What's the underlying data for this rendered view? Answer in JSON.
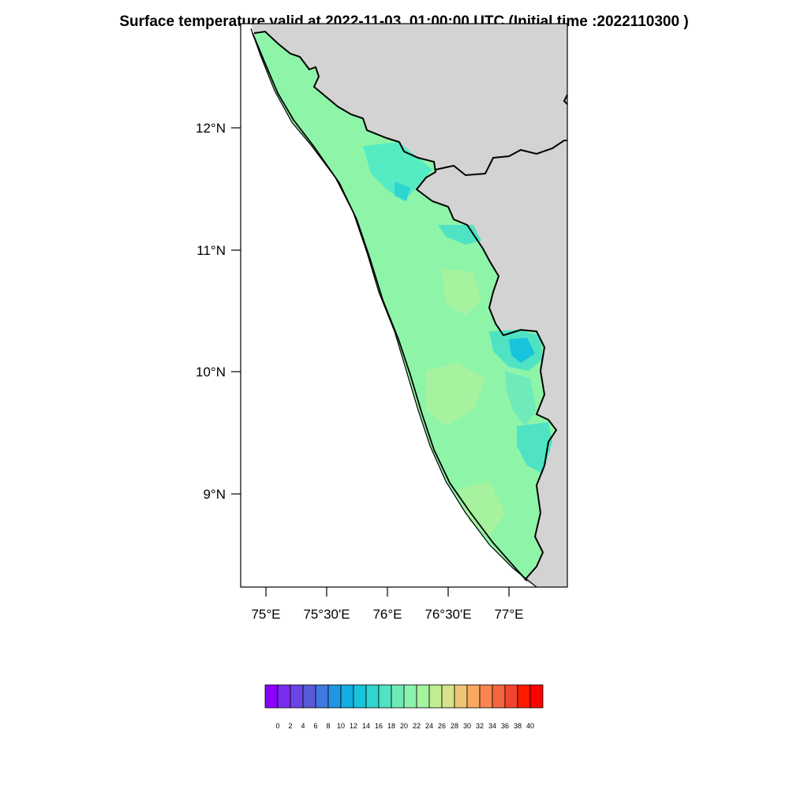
{
  "title": "Surface temperature valid at 2022-11-03_01:00:00 UTC (Initial time :2022110300 )",
  "map": {
    "lat_labels": [
      "12°N",
      "11°N",
      "10°N",
      "9°N"
    ],
    "lon_labels": [
      "75°E",
      "75°30'E",
      "76°E",
      "76°30'E",
      "77°E"
    ],
    "land_color": "#d3d3d3",
    "ocean_color": "#ffffff",
    "field_base_color": "#8ef5a8"
  },
  "colorbar": {
    "labels": [
      "0",
      "2",
      "4",
      "6",
      "8",
      "10",
      "12",
      "14",
      "16",
      "18",
      "20",
      "22",
      "24",
      "26",
      "28",
      "30",
      "32",
      "34",
      "36",
      "38",
      "40"
    ],
    "colors": [
      "#8a00ff",
      "#7b2df0",
      "#6a45e4",
      "#5a5ad8",
      "#3f78e0",
      "#1f95e3",
      "#13aee0",
      "#17c4dc",
      "#2fd6cf",
      "#4fe3c3",
      "#6feab9",
      "#8ef2ad",
      "#a6f29f",
      "#bfed93",
      "#d6e18a",
      "#ecc473",
      "#f8a860",
      "#f8864e",
      "#f5653e",
      "#f2452f",
      "#ff1a00",
      "#ff0000"
    ]
  }
}
